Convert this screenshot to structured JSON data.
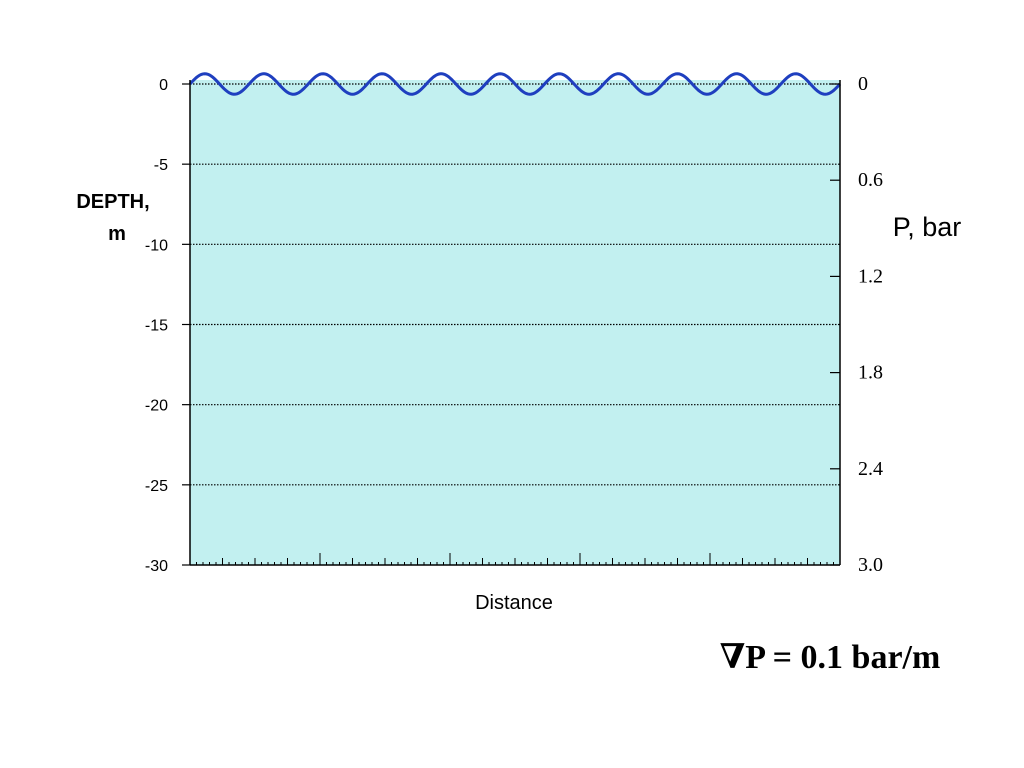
{
  "chart_data": {
    "type": "area",
    "title": "",
    "xlabel": "Distance",
    "ylabel_lines": [
      "DEPTH,",
      "m"
    ],
    "y_ticks": [
      0,
      -5,
      -10,
      -15,
      -20,
      -25,
      -30
    ],
    "y_tick_labels": [
      "0",
      "-5",
      "-10",
      "-15",
      "-20",
      "-25",
      "-30"
    ],
    "ylim": [
      -30,
      0
    ],
    "grid": "horizontal dotted",
    "fill_color": "#c2f0f0",
    "surface_color": "#1f3fbf",
    "secondary_axis": {
      "label": "P, bar",
      "ticks": [
        0,
        0.6,
        1.2,
        1.8,
        2.4,
        3.0
      ],
      "tick_labels": [
        "0",
        "0.6",
        "1.2",
        "1.8",
        "2.4",
        "3.0"
      ],
      "range": [
        0,
        3.0
      ]
    },
    "surface_wave": {
      "waves": 11,
      "amplitude_m": 0.2
    }
  },
  "annotation": {
    "formula": "∇P = 0.1 bar/m"
  }
}
